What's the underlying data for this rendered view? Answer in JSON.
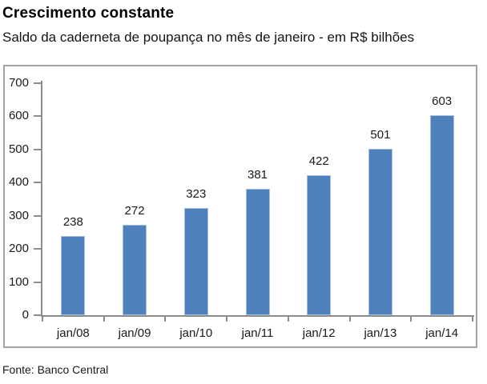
{
  "page": {
    "title": "Crescimento constante",
    "subtitle": "Saldo da caderneta de poupança no mês de janeiro - em R$ bilhões",
    "source": "Fonte: Banco Central"
  },
  "colors": {
    "bar_fill": "#4e80bc",
    "bar_edge": "#a9c1de",
    "axis_line": "#8c8c8c",
    "frame_border": "#a3a3a3",
    "text": "#1a1a1a"
  },
  "chart_data": {
    "type": "bar",
    "title": "Crescimento constante",
    "subtitle": "Saldo da caderneta de poupança no mês de janeiro - em R$ bilhões",
    "source": "Fonte: Banco Central",
    "categories": [
      "jan/08",
      "jan/09",
      "jan/10",
      "jan/11",
      "jan/12",
      "jan/13",
      "jan/14"
    ],
    "values": [
      238,
      272,
      323,
      381,
      422,
      501,
      603
    ],
    "data_labels": true,
    "xlabel": "",
    "ylabel": "",
    "ylim": [
      0,
      700
    ],
    "yticks": [
      0,
      100,
      200,
      300,
      400,
      500,
      600,
      700
    ],
    "grid": false,
    "legend": false
  }
}
